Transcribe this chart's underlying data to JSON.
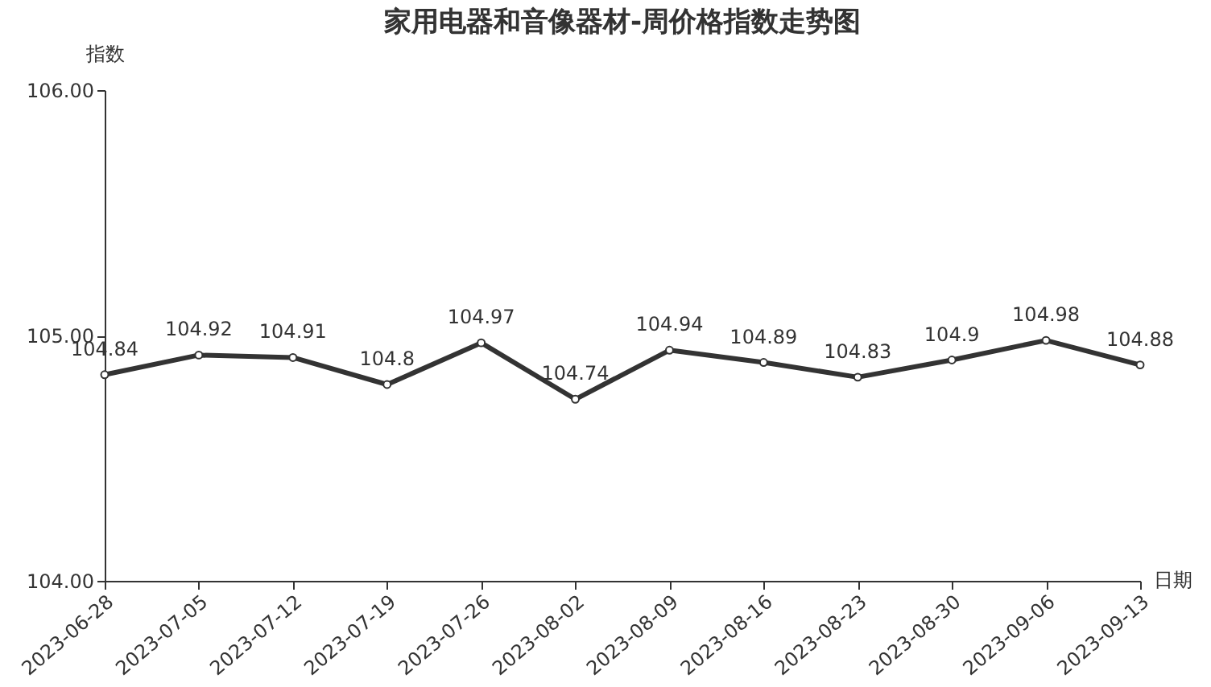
{
  "chart_data": {
    "type": "line",
    "title": "家用电器和音像器材-周价格指数走势图",
    "xlabel": "日期",
    "ylabel": "指数",
    "categories": [
      "2023-06-28",
      "2023-07-05",
      "2023-07-12",
      "2023-07-19",
      "2023-07-26",
      "2023-08-02",
      "2023-08-09",
      "2023-08-16",
      "2023-08-23",
      "2023-08-30",
      "2023-09-06",
      "2023-09-13"
    ],
    "series": [
      {
        "color": "#333333",
        "values": [
          104.84,
          104.92,
          104.91,
          104.8,
          104.97,
          104.74,
          104.94,
          104.89,
          104.83,
          104.9,
          104.98,
          104.88
        ]
      }
    ],
    "ylim": [
      104,
      106
    ],
    "yticks": [
      {
        "value": 104,
        "label": "104.00"
      },
      {
        "value": 105,
        "label": "105.00"
      },
      {
        "value": 106,
        "label": "106.00"
      }
    ],
    "data_labels": true,
    "grid": false,
    "marker": "circle",
    "line_style": "solid"
  }
}
